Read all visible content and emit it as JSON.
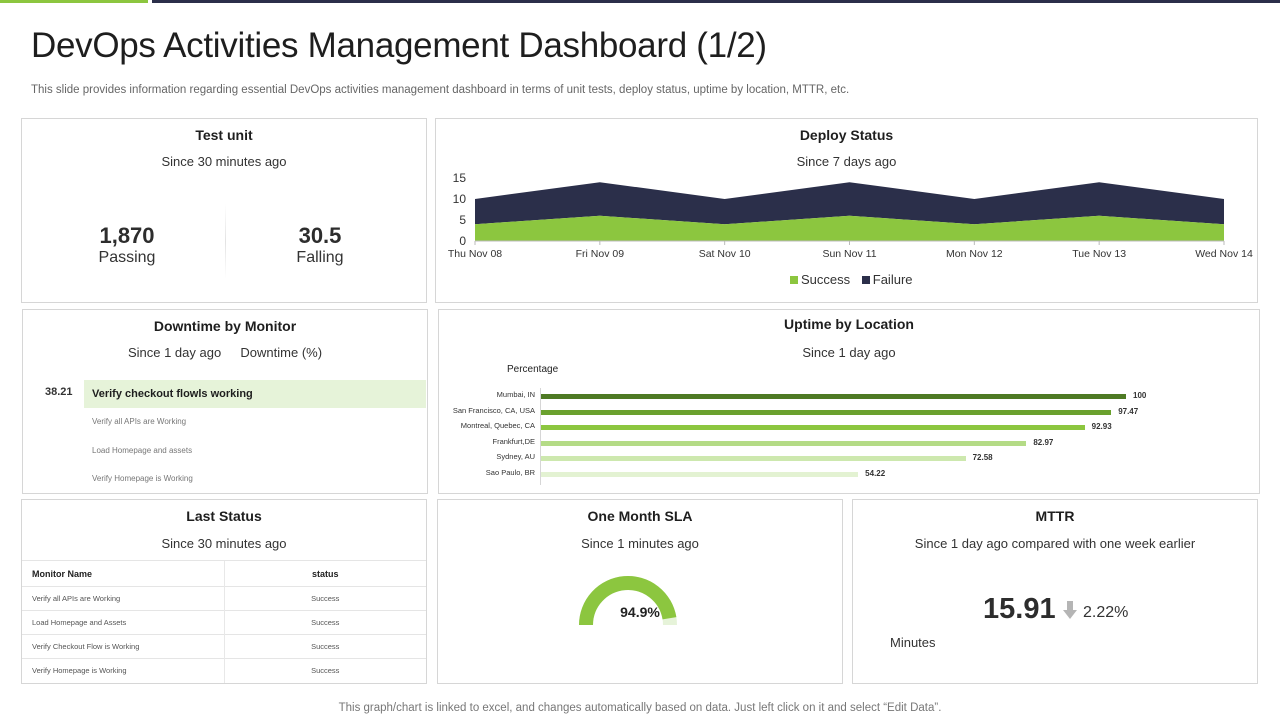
{
  "page": {
    "title": "DevOps Activities Management Dashboard (1/2)",
    "subtitle": "This slide provides information regarding essential DevOps activities management dashboard in terms of unit tests, deploy status, uptime by location, MTTR,  etc.",
    "footer": "This graph/chart is linked to excel,  and changes automatically based on data. Just left click on it and select “Edit Data”."
  },
  "colors": {
    "accent_green": "#8cc63f",
    "navy": "#2b2f4a",
    "light_green": "#e6f3d9"
  },
  "test_unit": {
    "title": "Test unit",
    "since": "Since 30 minutes ago",
    "passing_value": "1,870",
    "passing_label": "Passing",
    "falling_value": "30.5",
    "falling_label": "Falling"
  },
  "deploy_status": {
    "title": "Deploy Status",
    "since": "Since 7 days ago"
  },
  "downtime": {
    "title": "Downtime by Monitor",
    "since": "Since 1 day ago",
    "unit": "Downtime (%)",
    "value": "38.21",
    "items": [
      "Verify checkout flowls working",
      "Verify all APIs are Working",
      "Load Homepage  and assets",
      "Verify Homepage  is Working"
    ]
  },
  "uptime": {
    "title": "Uptime by Location",
    "since": "Since 1 day ago",
    "axis_label": "Percentage"
  },
  "last_status": {
    "title": "Last Status",
    "since": "Since 30 minutes ago",
    "col_name": "Monitor Name",
    "col_status": "status",
    "rows": [
      {
        "name": "Verify all APIs are Working",
        "status": "Success"
      },
      {
        "name": "Load Homepage  and Assets",
        "status": "Success"
      },
      {
        "name": "Verify Checkout Flow is Working",
        "status": "Success"
      },
      {
        "name": "Verify Homepage  is Working",
        "status": "Success"
      }
    ]
  },
  "sla": {
    "title": "One Month SLA",
    "since": "Since 1 minutes ago",
    "value_label": "94.9%",
    "value": 94.9
  },
  "mttr": {
    "title": "MTTR",
    "since": "Since 1 day ago compared with one week earlier",
    "value": "15.91",
    "change": "2.22%",
    "unit": "Minutes",
    "arrow_icon": "arrow-down-icon"
  },
  "chart_data": [
    {
      "type": "area",
      "title": "Deploy Status",
      "categories": [
        "Thu Nov 08",
        "Fri Nov 09",
        "Sat Nov 10",
        "Sun Nov 11",
        "Mon Nov 12",
        "Tue Nov 13",
        "Wed Nov 14"
      ],
      "series": [
        {
          "name": "Success",
          "values": [
            4,
            6,
            4,
            6,
            4,
            6,
            4
          ],
          "color": "#8cc63f"
        },
        {
          "name": "Failure",
          "values": [
            6,
            8,
            6,
            8,
            6,
            8,
            6
          ],
          "color": "#2b2f4a"
        }
      ],
      "stacked": true,
      "ylim": [
        0,
        15
      ],
      "yticks": [
        0,
        5,
        10,
        15
      ],
      "legend": "bottom"
    },
    {
      "type": "bar",
      "orientation": "horizontal",
      "title": "Uptime by Location",
      "xlabel": "Percentage",
      "categories": [
        "Mumbai, IN",
        "San Francisco, CA, USA",
        "Montreal, Quebec, CA",
        "Frankfurt,DE",
        "Sydney, AU",
        "Sao Paulo, BR"
      ],
      "values": [
        100,
        97.47,
        92.93,
        82.97,
        72.58,
        54.22
      ],
      "colors": [
        "#4e7a24",
        "#6aa12e",
        "#8cc63f",
        "#b4db86",
        "#cde8ae",
        "#e3f2d2"
      ],
      "xlim": [
        0,
        100
      ]
    }
  ]
}
